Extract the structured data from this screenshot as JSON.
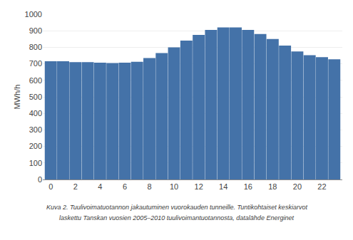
{
  "chart_data": {
    "type": "bar",
    "x": [
      0,
      1,
      2,
      3,
      4,
      5,
      6,
      7,
      8,
      9,
      10,
      11,
      12,
      13,
      14,
      15,
      16,
      17,
      18,
      19,
      20,
      21,
      22,
      23
    ],
    "values": [
      715,
      715,
      710,
      710,
      707,
      705,
      707,
      712,
      735,
      765,
      800,
      840,
      875,
      905,
      920,
      920,
      905,
      880,
      850,
      810,
      775,
      752,
      740,
      727
    ],
    "color": "#4472a8",
    "y_label": "MWh/h",
    "xlim": [
      -0.65,
      23.65
    ],
    "xticks": [
      0,
      2,
      4,
      6,
      8,
      10,
      12,
      14,
      16,
      18,
      20,
      22
    ],
    "ylim": [
      0,
      1000
    ],
    "yticks": [
      0,
      100,
      200,
      300,
      400,
      500,
      600,
      700,
      800,
      900,
      1000
    ],
    "grid": true,
    "annotations": [
      "Kuva 2. Tuulivoimatuotannon jakautuminen vuorokauden tunneille. Tuntikohtaiset keskiarvot",
      "laskettu Tanskan vuosien 2005–2010 tuulivoimantuotannosta, datalähde Energinet"
    ]
  }
}
